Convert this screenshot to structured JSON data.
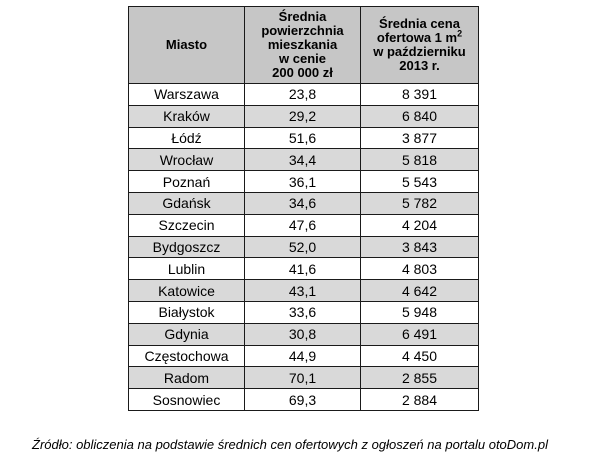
{
  "table": {
    "headers": {
      "city": "Miasto",
      "area": [
        "Średnia",
        "powierzchnia",
        "mieszkania",
        "w cenie",
        "200 000 zł"
      ],
      "price_line1": "Średnia cena",
      "price_line2_prefix": "ofertowa 1 m",
      "price_line2_sup": "2",
      "price_line3": "w październiku",
      "price_line4": "2013 r."
    },
    "rows": [
      {
        "city": "Warszawa",
        "area": "23,8",
        "price": "8 391"
      },
      {
        "city": "Kraków",
        "area": "29,2",
        "price": "6 840"
      },
      {
        "city": "Łódź",
        "area": "51,6",
        "price": "3 877"
      },
      {
        "city": "Wrocław",
        "area": "34,4",
        "price": "5 818"
      },
      {
        "city": "Poznań",
        "area": "36,1",
        "price": "5 543"
      },
      {
        "city": "Gdańsk",
        "area": "34,6",
        "price": "5 782"
      },
      {
        "city": "Szczecin",
        "area": "47,6",
        "price": "4 204"
      },
      {
        "city": "Bydgoszcz",
        "area": "52,0",
        "price": "3 843"
      },
      {
        "city": "Lublin",
        "area": "41,6",
        "price": "4 803"
      },
      {
        "city": "Katowice",
        "area": "43,1",
        "price": "4 642"
      },
      {
        "city": "Białystok",
        "area": "33,6",
        "price": "5 948"
      },
      {
        "city": "Gdynia",
        "area": "30,8",
        "price": "6 491"
      },
      {
        "city": "Częstochowa",
        "area": "44,9",
        "price": "4 450"
      },
      {
        "city": "Radom",
        "area": "70,1",
        "price": "2 855"
      },
      {
        "city": "Sosnowiec",
        "area": "69,3",
        "price": "2 884"
      }
    ]
  },
  "source_note": "Źródło: obliczenia na podstawie średnich cen ofertowych z ogłoszeń na portalu otoDom.pl",
  "colors": {
    "header_bg": "#c6c6c6",
    "shaded_row_bg": "#d9d9d9",
    "border": "#1a1a1a"
  }
}
